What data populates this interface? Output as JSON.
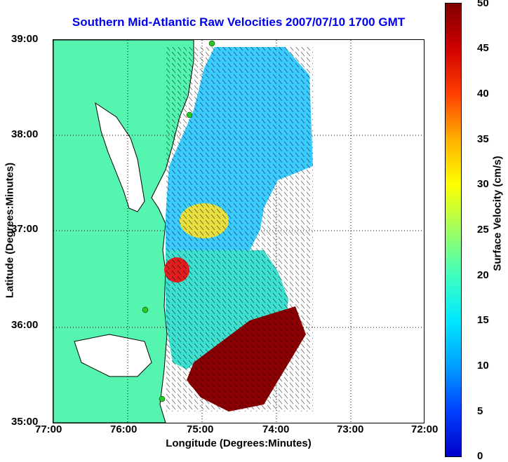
{
  "title": "Southern Mid-Atlantic Raw Velocities 2007/07/10 1700 GMT",
  "x_axis": {
    "label": "Longitude (Degrees:Minutes)",
    "ticks": [
      "77:00",
      "76:00",
      "75:00",
      "74:00",
      "73:00",
      "72:00"
    ]
  },
  "y_axis": {
    "label": "Latitude (Degrees:Minutes)",
    "ticks": [
      "39:00",
      "38:00",
      "37:00",
      "36:00",
      "35:00"
    ]
  },
  "colorbar": {
    "label": "Surface Velocity (cm/s)",
    "ticks": [
      "50",
      "45",
      "40",
      "35",
      "30",
      "25",
      "20",
      "15",
      "10",
      "5",
      "0"
    ]
  },
  "colors": {
    "land": "#55f5b0",
    "title": "#0000ee",
    "station": "#22cc22"
  }
}
